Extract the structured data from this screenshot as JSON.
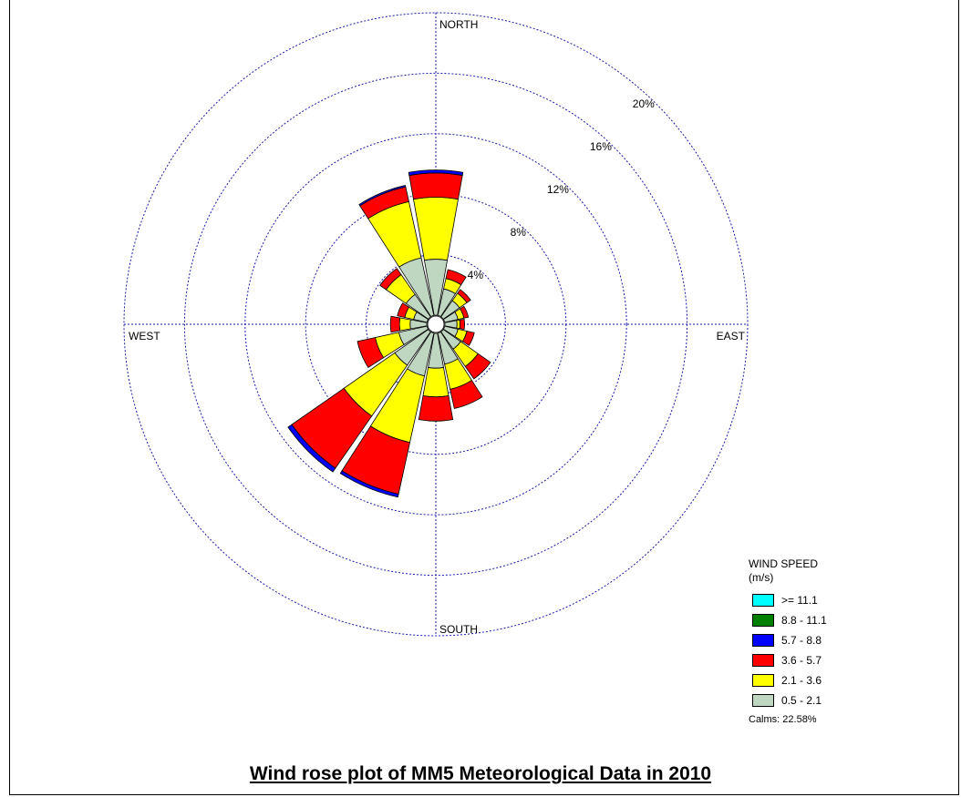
{
  "caption": "Wind rose plot of MM5 Meteorological Data in 2010",
  "chart_data": {
    "type": "wind-rose",
    "title": "",
    "directions": [
      "N",
      "NNE",
      "NE",
      "ENE",
      "E",
      "ESE",
      "SE",
      "SSE",
      "S",
      "SSW",
      "SW",
      "WSW",
      "W",
      "WNW",
      "NW",
      "NNW"
    ],
    "direction_labels": {
      "north": "NORTH",
      "east": "EAST",
      "south": "SOUTH",
      "west": "WEST"
    },
    "radial_ticks": [
      4,
      8,
      12,
      16,
      20
    ],
    "radial_tick_labels": [
      "4%",
      "8%",
      "12%",
      "16%",
      "20%"
    ],
    "rmax": 20,
    "grid": true,
    "legend_position": "bottom-right",
    "legend_title": "WIND SPEED",
    "legend_unit": "(m/s)",
    "calms_label": "Calms: 22.58%",
    "speed_classes": [
      {
        "label": "0.5 - 2.1",
        "color": "#bfd6c1"
      },
      {
        "label": "2.1 - 3.6",
        "color": "#ffff00"
      },
      {
        "label": "3.6 - 5.7",
        "color": "#ff0000"
      },
      {
        "label": "5.7 - 8.8",
        "color": "#0000ff"
      },
      {
        "label": "8.8 - 11.1",
        "color": "#008000"
      },
      {
        "label": ">= 11.1",
        "color": "#00ffff"
      }
    ],
    "cumulative_percent": [
      [
        3.7,
        7.8,
        9.4,
        9.6,
        9.6,
        9.6
      ],
      [
        1.8,
        2.5,
        3.1,
        3.1,
        3.1,
        3.1
      ],
      [
        1.3,
        1.9,
        2.2,
        2.2,
        2.2,
        2.2
      ],
      [
        0.9,
        1.3,
        1.6,
        1.6,
        1.6,
        1.6
      ],
      [
        0.8,
        1.0,
        1.3,
        1.3,
        1.3,
        1.3
      ],
      [
        0.9,
        1.5,
        2.0,
        2.0,
        2.0,
        2.0
      ],
      [
        1.4,
        2.8,
        3.8,
        3.8,
        3.8,
        3.8
      ],
      [
        2.1,
        3.8,
        5.1,
        5.1,
        5.1,
        5.1
      ],
      [
        2.3,
        4.2,
        5.8,
        5.8,
        5.8,
        5.8
      ],
      [
        2.9,
        7.4,
        10.9,
        11.1,
        11.1,
        11.1
      ],
      [
        2.7,
        6.8,
        11.0,
        11.3,
        11.3,
        11.3
      ],
      [
        1.9,
        3.5,
        4.7,
        4.7,
        4.7,
        4.7
      ],
      [
        1.1,
        1.8,
        2.4,
        2.4,
        2.4,
        2.4
      ],
      [
        0.9,
        1.5,
        2.0,
        2.0,
        2.0,
        2.0
      ],
      [
        1.8,
        3.4,
        3.9,
        3.9,
        3.9,
        3.9
      ],
      [
        3.9,
        7.7,
        8.7,
        8.8,
        8.8,
        8.8
      ]
    ]
  }
}
